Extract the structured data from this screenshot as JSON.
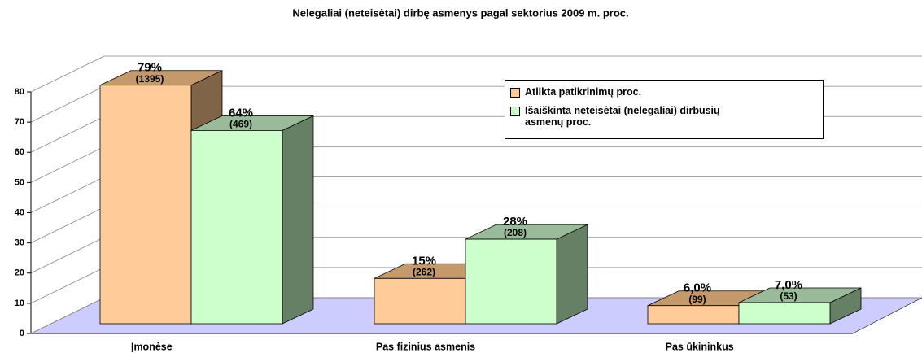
{
  "chart_data": {
    "type": "bar3d",
    "title": "Nelegaliai (neteisėtai) dirbę asmenys pagal sektorius 2009 m. proc.",
    "categories": [
      "Įmonėse",
      "Pas fizinius asmenis",
      "Pas ūkininkus"
    ],
    "series": [
      {
        "name": "Atlikta patikrinimų proc.",
        "color": "#ffcc99",
        "top_color": "#c49a6c",
        "side_color": "#806448",
        "values": [
          79,
          15,
          6
        ],
        "value_labels": [
          "79%",
          "15%",
          "6,0%"
        ],
        "counts": [
          1395,
          262,
          99
        ],
        "count_labels": [
          "(1395)",
          "(262)",
          "(99)"
        ]
      },
      {
        "name": "Išaiškinta neteisėtai (nelegaliai) dirbusių asmenų proc.",
        "color": "#ccffcc",
        "top_color": "#99bb99",
        "side_color": "#668066",
        "values": [
          64,
          28,
          7
        ],
        "value_labels": [
          "64%",
          "28%",
          "7,0%"
        ],
        "counts": [
          469,
          208,
          53
        ],
        "count_labels": [
          "(469)",
          "(208)",
          "(53)"
        ]
      }
    ],
    "ylim": [
      0,
      80
    ],
    "yticks": [
      0,
      10,
      20,
      30,
      40,
      50,
      60,
      70,
      80
    ],
    "grid": true,
    "floor_color": "#ccccff",
    "legend": "top-right"
  }
}
